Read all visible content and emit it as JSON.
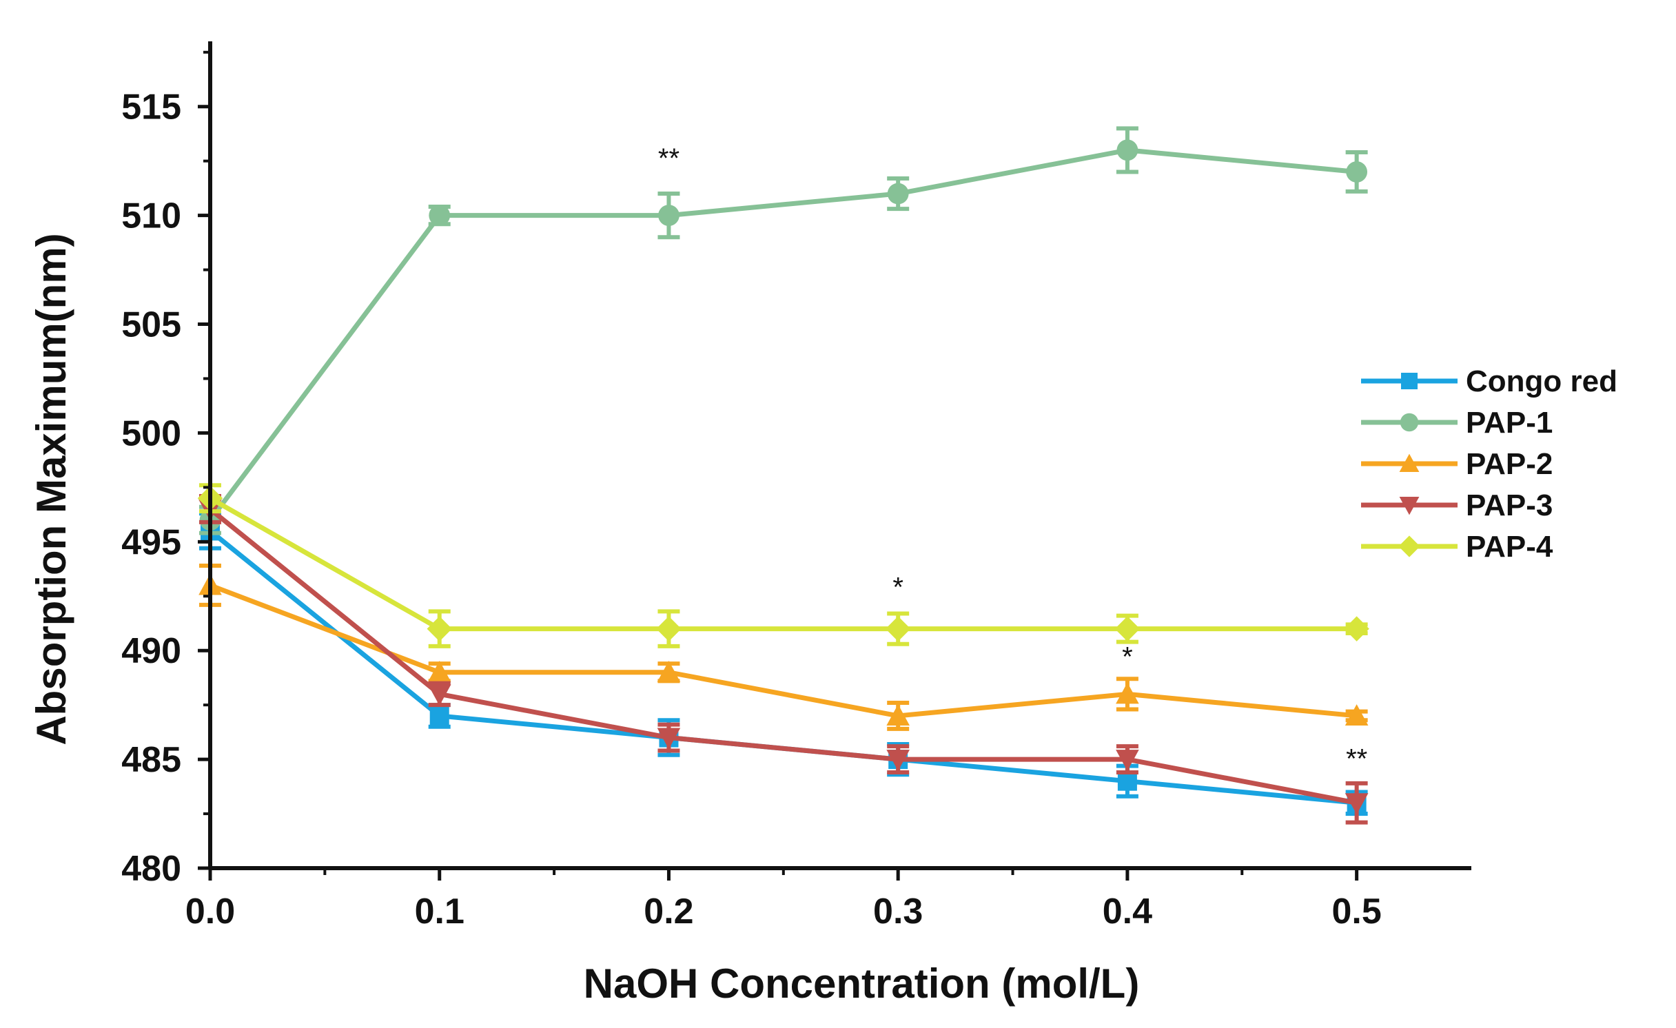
{
  "chart_data": {
    "type": "line",
    "title": "",
    "xlabel": "NaOH Concentration (mol/L)",
    "ylabel": "Absorption Maximum(nm)",
    "xlim": [
      0.0,
      0.55
    ],
    "ylim": [
      480,
      518
    ],
    "xticks": [
      "0.0",
      "0.1",
      "0.2",
      "0.3",
      "0.4",
      "0.5"
    ],
    "yticks": [
      "480",
      "485",
      "490",
      "495",
      "500",
      "505",
      "510",
      "515"
    ],
    "x": [
      0.0,
      0.1,
      0.2,
      0.3,
      0.4,
      0.5
    ],
    "legend_position": "center-right",
    "series": [
      {
        "name": "Congo red",
        "color": "#1aa3e0",
        "marker": "square",
        "values": [
          495.5,
          487,
          486,
          485,
          484,
          483
        ],
        "errors": [
          0.8,
          0.5,
          0.8,
          0.7,
          0.7,
          0.5
        ]
      },
      {
        "name": "PAP-1",
        "color": "#86c196",
        "marker": "circle",
        "values": [
          496,
          510,
          510,
          511,
          513,
          512
        ],
        "errors": [
          0.6,
          0.4,
          1.0,
          0.7,
          1.0,
          0.9
        ]
      },
      {
        "name": "PAP-2",
        "color": "#f6a521",
        "marker": "triangle-up",
        "values": [
          493,
          489,
          489,
          487,
          488,
          487
        ],
        "errors": [
          0.9,
          0.4,
          0.4,
          0.6,
          0.7,
          0.2
        ]
      },
      {
        "name": "PAP-3",
        "color": "#c0504d",
        "marker": "triangle-down",
        "values": [
          496.5,
          488,
          486,
          485,
          485,
          483
        ],
        "errors": [
          0.6,
          0.5,
          0.6,
          0.6,
          0.6,
          0.9
        ]
      },
      {
        "name": "PAP-4",
        "color": "#d7e53b",
        "marker": "diamond",
        "values": [
          497,
          491,
          491,
          491,
          491,
          491
        ],
        "errors": [
          0.6,
          0.8,
          0.8,
          0.7,
          0.6,
          0.2
        ]
      }
    ],
    "annotations": [
      {
        "text": "**",
        "x": 0.2,
        "y": 512.2
      },
      {
        "text": "*",
        "x": 0.3,
        "y": 492.5
      },
      {
        "text": "*",
        "x": 0.4,
        "y": 489.3
      },
      {
        "text": "**",
        "x": 0.5,
        "y": 484.6
      }
    ]
  }
}
